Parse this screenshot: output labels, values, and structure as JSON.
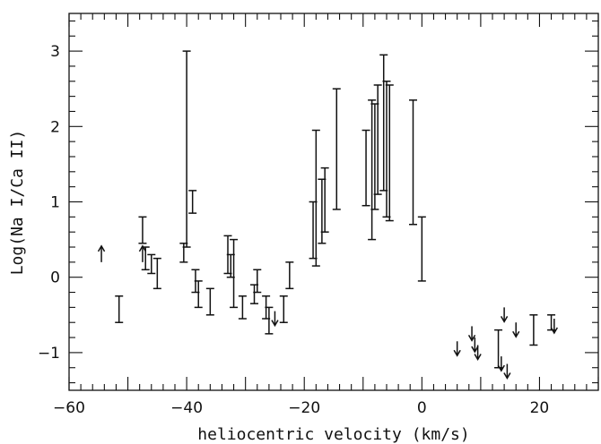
{
  "chart_data": {
    "type": "scatter",
    "title": "",
    "xlabel": "heliocentric velocity (km/s)",
    "ylabel": "Log(Na I/Ca II)",
    "xlim": [
      -60,
      30
    ],
    "ylim": [
      -1.5,
      3.5
    ],
    "xticks": [
      -60,
      -40,
      -20,
      0,
      20
    ],
    "xtick_labels": [
      "−60",
      "−40",
      "−20",
      "0",
      "20"
    ],
    "yticks": [
      -1,
      0,
      1,
      2,
      3
    ],
    "ytick_labels": [
      "−1",
      "0",
      "1",
      "2",
      "3"
    ],
    "grid": false,
    "series": [
      {
        "values": [
          {
            "kind": "range",
            "x": -51.5,
            "low": -0.6,
            "high": -0.25
          },
          {
            "kind": "range",
            "x": -47.5,
            "low": 0.45,
            "high": 0.8
          },
          {
            "kind": "range",
            "x": -47.0,
            "low": 0.1,
            "high": 0.4
          },
          {
            "kind": "range",
            "x": -46.0,
            "low": 0.05,
            "high": 0.3
          },
          {
            "kind": "range",
            "x": -45.0,
            "low": -0.15,
            "high": 0.25
          },
          {
            "kind": "range",
            "x": -40.5,
            "low": 0.2,
            "high": 0.45
          },
          {
            "kind": "range",
            "x": -40.0,
            "low": 0.4,
            "high": 3.0
          },
          {
            "kind": "range",
            "x": -39.0,
            "low": 0.85,
            "high": 1.15
          },
          {
            "kind": "range",
            "x": -38.5,
            "low": -0.2,
            "high": 0.1
          },
          {
            "kind": "range",
            "x": -38.0,
            "low": -0.4,
            "high": -0.05
          },
          {
            "kind": "range",
            "x": -36.0,
            "low": -0.5,
            "high": -0.15
          },
          {
            "kind": "range",
            "x": -33.0,
            "low": 0.05,
            "high": 0.55
          },
          {
            "kind": "range",
            "x": -32.5,
            "low": 0.0,
            "high": 0.3
          },
          {
            "kind": "range",
            "x": -32.0,
            "low": -0.4,
            "high": 0.5
          },
          {
            "kind": "range",
            "x": -30.5,
            "low": -0.55,
            "high": -0.25
          },
          {
            "kind": "range",
            "x": -28.5,
            "low": -0.35,
            "high": -0.1
          },
          {
            "kind": "range",
            "x": -28.0,
            "low": -0.2,
            "high": 0.1
          },
          {
            "kind": "range",
            "x": -26.5,
            "low": -0.55,
            "high": -0.25
          },
          {
            "kind": "range",
            "x": -26.0,
            "low": -0.75,
            "high": -0.4
          },
          {
            "kind": "range",
            "x": -23.5,
            "low": -0.6,
            "high": -0.25
          },
          {
            "kind": "range",
            "x": -22.5,
            "low": -0.15,
            "high": 0.2
          },
          {
            "kind": "range",
            "x": -18.5,
            "low": 0.25,
            "high": 1.0
          },
          {
            "kind": "range",
            "x": -18.0,
            "low": 0.15,
            "high": 1.95
          },
          {
            "kind": "range",
            "x": -17.0,
            "low": 0.45,
            "high": 1.3
          },
          {
            "kind": "range",
            "x": -16.5,
            "low": 0.6,
            "high": 1.45
          },
          {
            "kind": "range",
            "x": -14.5,
            "low": 0.9,
            "high": 2.5
          },
          {
            "kind": "range",
            "x": -9.5,
            "low": 0.95,
            "high": 1.95
          },
          {
            "kind": "range",
            "x": -8.5,
            "low": 0.5,
            "high": 2.35
          },
          {
            "kind": "range",
            "x": -8.0,
            "low": 0.9,
            "high": 2.3
          },
          {
            "kind": "range",
            "x": -7.5,
            "low": 1.1,
            "high": 2.55
          },
          {
            "kind": "range",
            "x": -6.5,
            "low": 1.15,
            "high": 2.95
          },
          {
            "kind": "range",
            "x": -6.0,
            "low": 0.8,
            "high": 2.6
          },
          {
            "kind": "range",
            "x": -5.5,
            "low": 0.75,
            "high": 2.55
          },
          {
            "kind": "range",
            "x": -1.5,
            "low": 0.7,
            "high": 2.35
          },
          {
            "kind": "range",
            "x": 0.0,
            "low": -0.05,
            "high": 0.8
          },
          {
            "kind": "range",
            "x": 13.0,
            "low": -1.2,
            "high": -0.7
          },
          {
            "kind": "range",
            "x": 19.0,
            "low": -0.9,
            "high": -0.5
          },
          {
            "kind": "range",
            "x": 22.0,
            "low": -0.7,
            "high": -0.5
          },
          {
            "kind": "lower",
            "x": -54.5,
            "y": 0.2
          },
          {
            "kind": "lower",
            "x": -47.5,
            "y": 0.2
          },
          {
            "kind": "upper",
            "x": -25.0,
            "y": -0.45
          },
          {
            "kind": "upper",
            "x": 6.0,
            "y": -0.85
          },
          {
            "kind": "upper",
            "x": 8.5,
            "y": -0.65
          },
          {
            "kind": "upper",
            "x": 9.0,
            "y": -0.8
          },
          {
            "kind": "upper",
            "x": 9.5,
            "y": -0.9
          },
          {
            "kind": "upper",
            "x": 13.5,
            "y": -1.05
          },
          {
            "kind": "upper",
            "x": 14.0,
            "y": -0.4
          },
          {
            "kind": "upper",
            "x": 14.5,
            "y": -1.15
          },
          {
            "kind": "upper",
            "x": 16.0,
            "y": -0.6
          },
          {
            "kind": "upper",
            "x": 22.5,
            "y": -0.55
          }
        ]
      }
    ]
  }
}
